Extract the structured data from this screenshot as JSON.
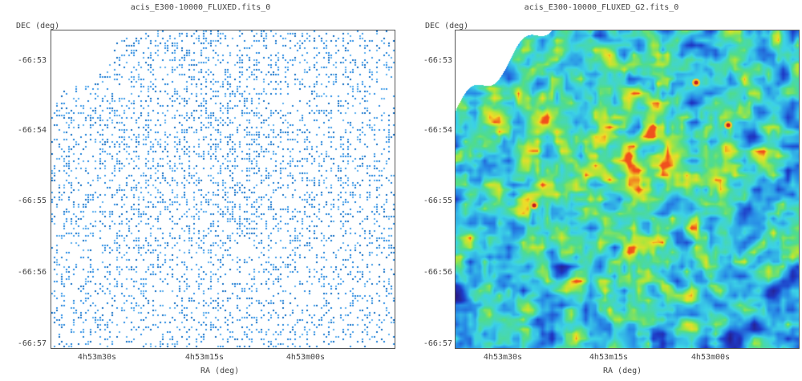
{
  "panels": [
    {
      "title": "acis_E300-10000_FLUXED.fits_0",
      "colormap": "sparse-blue",
      "ylabel": "DEC  (deg)",
      "xlabel": "RA  (deg)",
      "yticks": [
        "-66:53",
        "-66:54",
        "-66:55",
        "-66:56",
        "-66:57"
      ],
      "xticks": [
        "4h53m30s",
        "4h53m15s",
        "4h53m00s"
      ]
    },
    {
      "title": "acis_E300-10000_FLUXED_G2.fits_0",
      "colormap": "smoothed-rainbow",
      "ylabel": "DEC  (deg)",
      "xlabel": "RA  (deg)",
      "yticks": [
        "-66:53",
        "-66:54",
        "-66:55",
        "-66:56",
        "-66:57"
      ],
      "xticks": [
        "4h53m30s",
        "4h53m15s",
        "4h53m00s"
      ]
    }
  ]
}
